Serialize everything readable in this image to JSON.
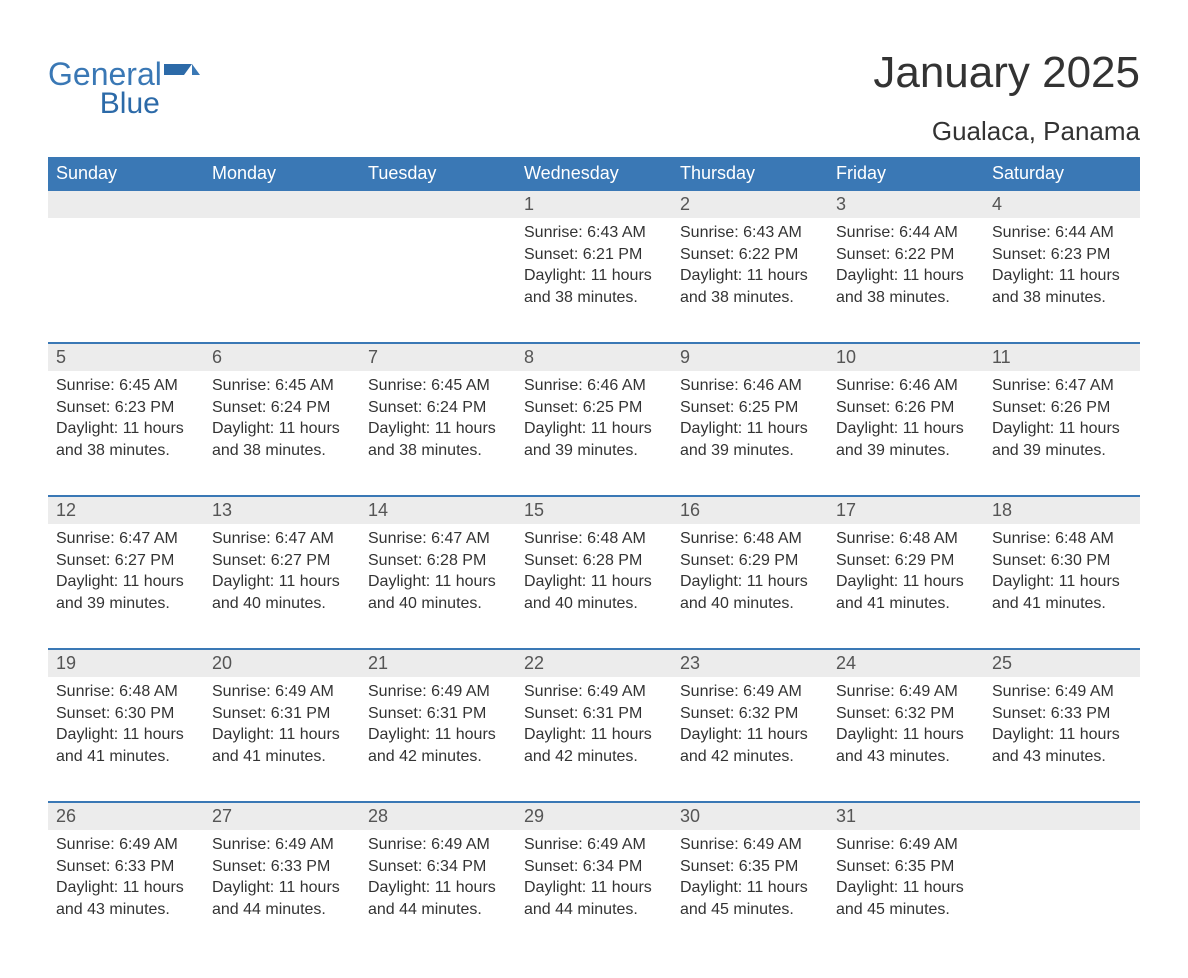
{
  "logo": {
    "line1": "General",
    "line2": "Blue",
    "brand_color": "#3a78b5"
  },
  "title": "January 2025",
  "location": "Gualaca, Panama",
  "colors": {
    "header_bg": "#3a78b5",
    "header_text": "#ffffff",
    "daynum_bg": "#ececec",
    "week_divider": "#3a78b5",
    "body_text": "#333333",
    "page_bg": "#ffffff"
  },
  "typography": {
    "title_fontsize": 44,
    "location_fontsize": 26,
    "dow_fontsize": 18,
    "daynum_fontsize": 18,
    "body_fontsize": 16
  },
  "days_of_week": [
    "Sunday",
    "Monday",
    "Tuesday",
    "Wednesday",
    "Thursday",
    "Friday",
    "Saturday"
  ],
  "weeks": [
    [
      null,
      null,
      null,
      {
        "n": "1",
        "sunrise": "Sunrise: 6:43 AM",
        "sunset": "Sunset: 6:21 PM",
        "d1": "Daylight: 11 hours",
        "d2": "and 38 minutes."
      },
      {
        "n": "2",
        "sunrise": "Sunrise: 6:43 AM",
        "sunset": "Sunset: 6:22 PM",
        "d1": "Daylight: 11 hours",
        "d2": "and 38 minutes."
      },
      {
        "n": "3",
        "sunrise": "Sunrise: 6:44 AM",
        "sunset": "Sunset: 6:22 PM",
        "d1": "Daylight: 11 hours",
        "d2": "and 38 minutes."
      },
      {
        "n": "4",
        "sunrise": "Sunrise: 6:44 AM",
        "sunset": "Sunset: 6:23 PM",
        "d1": "Daylight: 11 hours",
        "d2": "and 38 minutes."
      }
    ],
    [
      {
        "n": "5",
        "sunrise": "Sunrise: 6:45 AM",
        "sunset": "Sunset: 6:23 PM",
        "d1": "Daylight: 11 hours",
        "d2": "and 38 minutes."
      },
      {
        "n": "6",
        "sunrise": "Sunrise: 6:45 AM",
        "sunset": "Sunset: 6:24 PM",
        "d1": "Daylight: 11 hours",
        "d2": "and 38 minutes."
      },
      {
        "n": "7",
        "sunrise": "Sunrise: 6:45 AM",
        "sunset": "Sunset: 6:24 PM",
        "d1": "Daylight: 11 hours",
        "d2": "and 38 minutes."
      },
      {
        "n": "8",
        "sunrise": "Sunrise: 6:46 AM",
        "sunset": "Sunset: 6:25 PM",
        "d1": "Daylight: 11 hours",
        "d2": "and 39 minutes."
      },
      {
        "n": "9",
        "sunrise": "Sunrise: 6:46 AM",
        "sunset": "Sunset: 6:25 PM",
        "d1": "Daylight: 11 hours",
        "d2": "and 39 minutes."
      },
      {
        "n": "10",
        "sunrise": "Sunrise: 6:46 AM",
        "sunset": "Sunset: 6:26 PM",
        "d1": "Daylight: 11 hours",
        "d2": "and 39 minutes."
      },
      {
        "n": "11",
        "sunrise": "Sunrise: 6:47 AM",
        "sunset": "Sunset: 6:26 PM",
        "d1": "Daylight: 11 hours",
        "d2": "and 39 minutes."
      }
    ],
    [
      {
        "n": "12",
        "sunrise": "Sunrise: 6:47 AM",
        "sunset": "Sunset: 6:27 PM",
        "d1": "Daylight: 11 hours",
        "d2": "and 39 minutes."
      },
      {
        "n": "13",
        "sunrise": "Sunrise: 6:47 AM",
        "sunset": "Sunset: 6:27 PM",
        "d1": "Daylight: 11 hours",
        "d2": "and 40 minutes."
      },
      {
        "n": "14",
        "sunrise": "Sunrise: 6:47 AM",
        "sunset": "Sunset: 6:28 PM",
        "d1": "Daylight: 11 hours",
        "d2": "and 40 minutes."
      },
      {
        "n": "15",
        "sunrise": "Sunrise: 6:48 AM",
        "sunset": "Sunset: 6:28 PM",
        "d1": "Daylight: 11 hours",
        "d2": "and 40 minutes."
      },
      {
        "n": "16",
        "sunrise": "Sunrise: 6:48 AM",
        "sunset": "Sunset: 6:29 PM",
        "d1": "Daylight: 11 hours",
        "d2": "and 40 minutes."
      },
      {
        "n": "17",
        "sunrise": "Sunrise: 6:48 AM",
        "sunset": "Sunset: 6:29 PM",
        "d1": "Daylight: 11 hours",
        "d2": "and 41 minutes."
      },
      {
        "n": "18",
        "sunrise": "Sunrise: 6:48 AM",
        "sunset": "Sunset: 6:30 PM",
        "d1": "Daylight: 11 hours",
        "d2": "and 41 minutes."
      }
    ],
    [
      {
        "n": "19",
        "sunrise": "Sunrise: 6:48 AM",
        "sunset": "Sunset: 6:30 PM",
        "d1": "Daylight: 11 hours",
        "d2": "and 41 minutes."
      },
      {
        "n": "20",
        "sunrise": "Sunrise: 6:49 AM",
        "sunset": "Sunset: 6:31 PM",
        "d1": "Daylight: 11 hours",
        "d2": "and 41 minutes."
      },
      {
        "n": "21",
        "sunrise": "Sunrise: 6:49 AM",
        "sunset": "Sunset: 6:31 PM",
        "d1": "Daylight: 11 hours",
        "d2": "and 42 minutes."
      },
      {
        "n": "22",
        "sunrise": "Sunrise: 6:49 AM",
        "sunset": "Sunset: 6:31 PM",
        "d1": "Daylight: 11 hours",
        "d2": "and 42 minutes."
      },
      {
        "n": "23",
        "sunrise": "Sunrise: 6:49 AM",
        "sunset": "Sunset: 6:32 PM",
        "d1": "Daylight: 11 hours",
        "d2": "and 42 minutes."
      },
      {
        "n": "24",
        "sunrise": "Sunrise: 6:49 AM",
        "sunset": "Sunset: 6:32 PM",
        "d1": "Daylight: 11 hours",
        "d2": "and 43 minutes."
      },
      {
        "n": "25",
        "sunrise": "Sunrise: 6:49 AM",
        "sunset": "Sunset: 6:33 PM",
        "d1": "Daylight: 11 hours",
        "d2": "and 43 minutes."
      }
    ],
    [
      {
        "n": "26",
        "sunrise": "Sunrise: 6:49 AM",
        "sunset": "Sunset: 6:33 PM",
        "d1": "Daylight: 11 hours",
        "d2": "and 43 minutes."
      },
      {
        "n": "27",
        "sunrise": "Sunrise: 6:49 AM",
        "sunset": "Sunset: 6:33 PM",
        "d1": "Daylight: 11 hours",
        "d2": "and 44 minutes."
      },
      {
        "n": "28",
        "sunrise": "Sunrise: 6:49 AM",
        "sunset": "Sunset: 6:34 PM",
        "d1": "Daylight: 11 hours",
        "d2": "and 44 minutes."
      },
      {
        "n": "29",
        "sunrise": "Sunrise: 6:49 AM",
        "sunset": "Sunset: 6:34 PM",
        "d1": "Daylight: 11 hours",
        "d2": "and 44 minutes."
      },
      {
        "n": "30",
        "sunrise": "Sunrise: 6:49 AM",
        "sunset": "Sunset: 6:35 PM",
        "d1": "Daylight: 11 hours",
        "d2": "and 45 minutes."
      },
      {
        "n": "31",
        "sunrise": "Sunrise: 6:49 AM",
        "sunset": "Sunset: 6:35 PM",
        "d1": "Daylight: 11 hours",
        "d2": "and 45 minutes."
      },
      null
    ]
  ]
}
